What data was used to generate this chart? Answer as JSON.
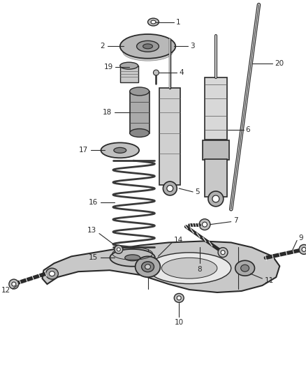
{
  "background_color": "#ffffff",
  "fig_width": 4.38,
  "fig_height": 5.33,
  "dpi": 100,
  "line_color": "#2a2a2a",
  "label_color": "#2a2a2a",
  "leader_color": "#2a2a2a",
  "label_fs": 7.5
}
